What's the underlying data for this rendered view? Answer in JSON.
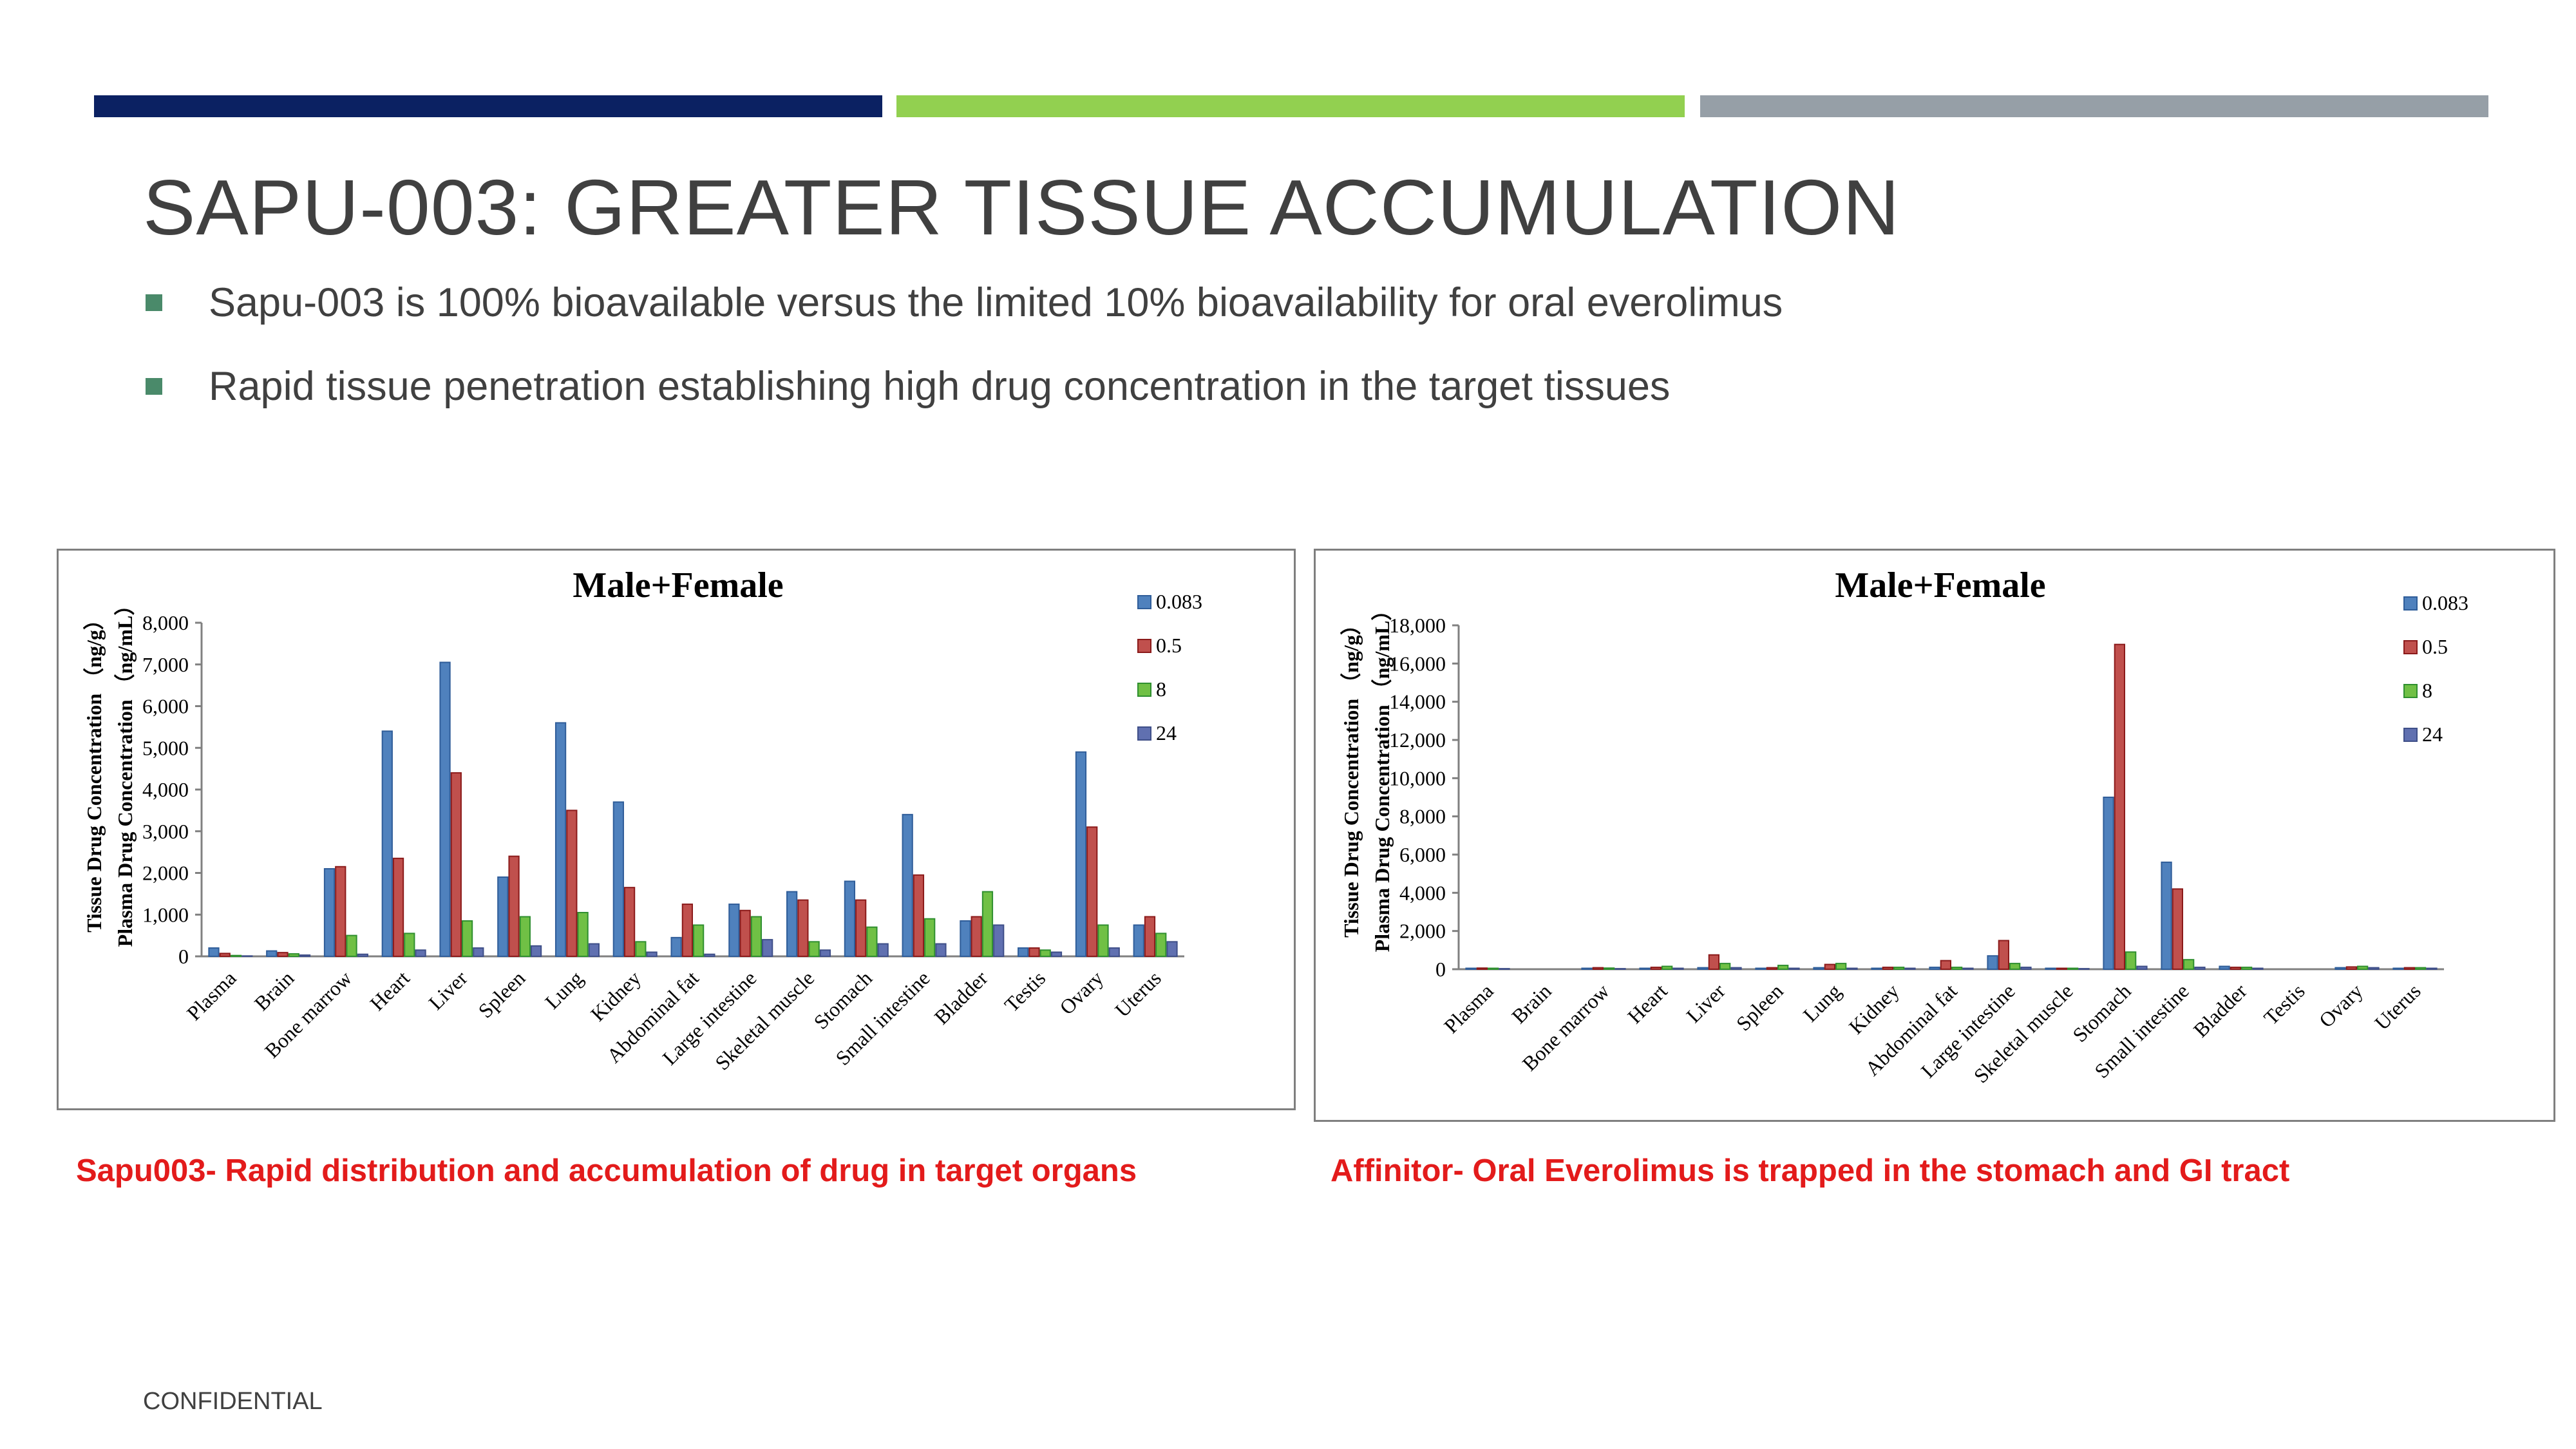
{
  "colors": {
    "strip_navy": "#0b2162",
    "strip_green": "#92d050",
    "strip_gray": "#969fa7",
    "title": "#404040",
    "bullet_square": "#4a8a6a",
    "caption_red": "#e31b1b",
    "series": [
      "#4f81bd",
      "#c0504d",
      "#70c045",
      "#6070b0"
    ],
    "series_border": [
      "#2f5d99",
      "#8b1a1a",
      "#2f8f2f",
      "#3f4f88"
    ]
  },
  "title": "SAPU-003: GREATER TISSUE ACCUMULATION",
  "bullets": [
    "Sapu-003 is 100% bioavailable versus the limited 10% bioavailability for oral everolimus",
    "Rapid tissue penetration establishing high drug concentration in the target tissues"
  ],
  "captions": {
    "left": "Sapu003- Rapid distribution and accumulation of drug in target organs",
    "right": "Affinitor- Oral Everolimus is trapped in the stomach and GI tract"
  },
  "footer": "CONFIDENTIAL",
  "chart_data": [
    {
      "type": "bar",
      "title": "Male+Female",
      "ylabel_lines": [
        "Tissue Drug Concentration （ng/g）",
        "Plasma Drug Concentration （ng/mL）"
      ],
      "xlabel": "",
      "ylim": [
        0,
        8000
      ],
      "yticks": [
        0,
        1000,
        2000,
        3000,
        4000,
        5000,
        6000,
        7000,
        8000
      ],
      "ytick_labels": [
        "0",
        "1,000",
        "2,000",
        "3,000",
        "4,000",
        "5,000",
        "6,000",
        "7,000",
        "8,000"
      ],
      "legend_position": "top-right",
      "categories": [
        "Plasma",
        "Brain",
        "Bone marrow",
        "Heart",
        "Liver",
        "Spleen",
        "Lung",
        "Kidney",
        "Abdominal fat",
        "Large intestine",
        "Skeletal muscle",
        "Stomach",
        "Small intestine",
        "Bladder",
        "Testis",
        "Ovary",
        "Uterus"
      ],
      "series": [
        {
          "name": "0.083",
          "values": [
            200,
            130,
            2100,
            5400,
            7050,
            1900,
            5600,
            3700,
            450,
            1250,
            1550,
            1800,
            3400,
            850,
            200,
            4900,
            750
          ]
        },
        {
          "name": "0.5",
          "values": [
            70,
            90,
            2150,
            2350,
            4400,
            2400,
            3500,
            1650,
            1250,
            1100,
            1350,
            1350,
            1950,
            950,
            200,
            3100,
            950
          ]
        },
        {
          "name": "8",
          "values": [
            20,
            60,
            500,
            550,
            850,
            950,
            1050,
            350,
            750,
            950,
            350,
            700,
            900,
            1550,
            150,
            750,
            550
          ]
        },
        {
          "name": "24",
          "values": [
            10,
            30,
            50,
            150,
            200,
            250,
            300,
            100,
            50,
            400,
            150,
            300,
            300,
            750,
            100,
            200,
            350
          ]
        }
      ]
    },
    {
      "type": "bar",
      "title": "Male+Female",
      "ylabel_lines": [
        "Tissue Drug Concentration （ng/g）",
        "Plasma Drug Concentration （ng/mL）"
      ],
      "xlabel": "",
      "ylim": [
        0,
        18000
      ],
      "yticks": [
        0,
        2000,
        4000,
        6000,
        8000,
        10000,
        12000,
        14000,
        16000,
        18000
      ],
      "ytick_labels": [
        "0",
        "2,000",
        "4,000",
        "6,000",
        "8,000",
        "10,000",
        "12,000",
        "14,000",
        "16,000",
        "18,000"
      ],
      "legend_position": "top-right",
      "categories": [
        "Plasma",
        "Brain",
        "Bone marrow",
        "Heart",
        "Liver",
        "Spleen",
        "Lung",
        "Kidney",
        "Abdominal fat",
        "Large intestine",
        "Skeletal muscle",
        "Stomach",
        "Small intestine",
        "Bladder",
        "Testis",
        "Ovary",
        "Uterus"
      ],
      "series": [
        {
          "name": "0.083",
          "values": [
            50,
            0,
            50,
            50,
            80,
            50,
            80,
            50,
            100,
            700,
            50,
            9000,
            5600,
            150,
            0,
            80,
            50
          ]
        },
        {
          "name": "0.5",
          "values": [
            60,
            0,
            80,
            100,
            750,
            80,
            250,
            100,
            450,
            1500,
            50,
            17000,
            4200,
            100,
            0,
            120,
            80
          ]
        },
        {
          "name": "8",
          "values": [
            50,
            0,
            60,
            150,
            300,
            200,
            300,
            100,
            100,
            300,
            50,
            900,
            500,
            100,
            0,
            150,
            80
          ]
        },
        {
          "name": "24",
          "values": [
            30,
            0,
            30,
            50,
            80,
            50,
            50,
            50,
            50,
            100,
            30,
            150,
            100,
            50,
            0,
            80,
            50
          ]
        }
      ]
    }
  ]
}
